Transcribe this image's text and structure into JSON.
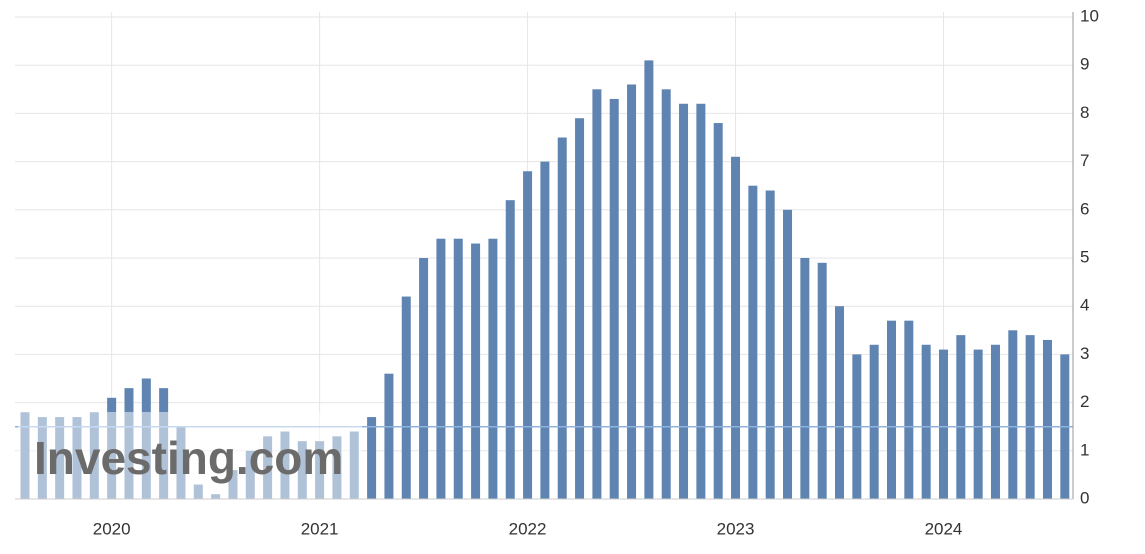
{
  "chart_data": {
    "type": "bar",
    "categories": [
      null,
      null,
      null,
      null,
      null,
      "2020",
      null,
      null,
      null,
      null,
      null,
      null,
      null,
      null,
      null,
      null,
      null,
      "2021",
      null,
      null,
      null,
      null,
      null,
      null,
      null,
      null,
      null,
      null,
      null,
      "2022",
      null,
      null,
      null,
      null,
      null,
      null,
      null,
      null,
      null,
      null,
      null,
      "2023",
      null,
      null,
      null,
      null,
      null,
      null,
      null,
      null,
      null,
      null,
      null,
      "2024",
      null,
      null,
      null,
      null,
      null,
      null,
      null
    ],
    "values": [
      1.8,
      1.7,
      1.7,
      1.7,
      1.8,
      2.1,
      2.3,
      2.5,
      2.3,
      1.5,
      0.3,
      0.1,
      0.6,
      1.0,
      1.3,
      1.4,
      1.2,
      1.2,
      1.3,
      1.4,
      1.7,
      2.6,
      4.2,
      5.0,
      5.4,
      5.4,
      5.3,
      5.4,
      6.2,
      6.8,
      7.0,
      7.5,
      7.9,
      8.5,
      8.3,
      8.6,
      9.1,
      8.5,
      8.2,
      8.2,
      7.8,
      7.1,
      6.5,
      6.4,
      6.0,
      5.0,
      4.9,
      4.0,
      3.0,
      3.2,
      3.7,
      3.7,
      3.2,
      3.1,
      3.4,
      3.1,
      3.2,
      3.5,
      3.4,
      3.3,
      3.0
    ],
    "color": "#5f84b1",
    "ylim": [
      0,
      10
    ],
    "yticks": [
      0,
      1,
      2,
      3,
      4,
      5,
      6,
      7,
      8,
      9,
      10
    ],
    "grid": true,
    "reference_line": 1.5,
    "reference_color": "#8fb3de",
    "watermark": "Investing.com"
  }
}
